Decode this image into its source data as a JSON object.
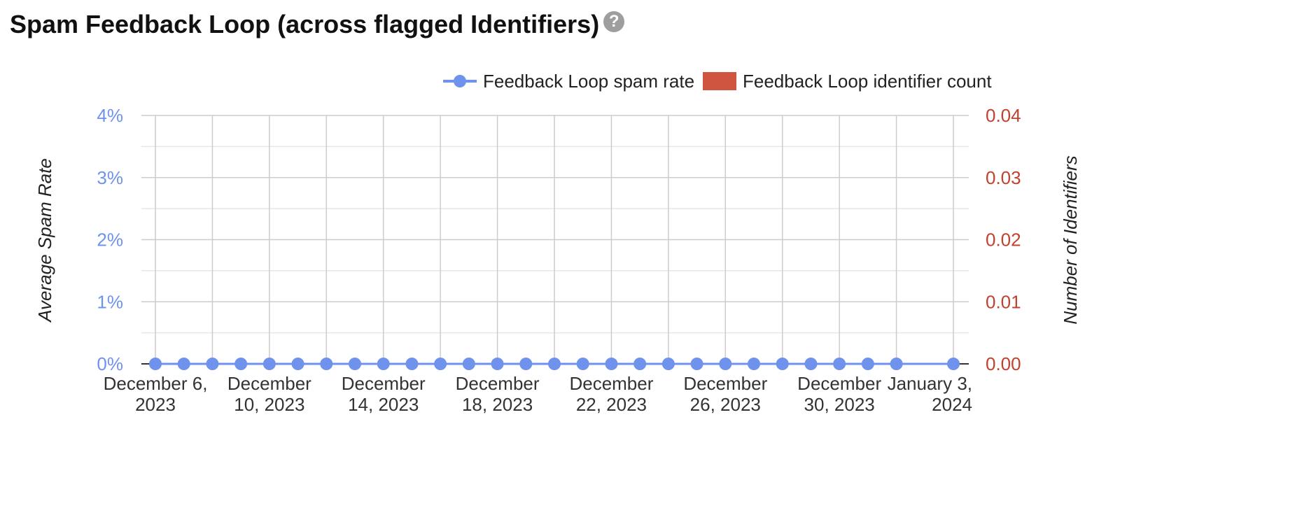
{
  "header": {
    "title": "Spam Feedback Loop (across flagged Identifiers)",
    "help_icon": "?"
  },
  "chart_data": {
    "type": "line",
    "title": "Spam Feedback Loop (across flagged Identifiers)",
    "ylabel_left": "Average Spam Rate",
    "ylabel_right": "Number of Identifiers",
    "legend_position": "top-right",
    "grid": true,
    "y_left": {
      "min": 0,
      "max": 4,
      "ticks": [
        "0%",
        "1%",
        "2%",
        "3%",
        "4%"
      ]
    },
    "y_right": {
      "min": 0,
      "max": 0.04,
      "ticks": [
        "0.00",
        "0.01",
        "0.02",
        "0.03",
        "0.04"
      ]
    },
    "x_range": [
      "2023-12-06",
      "2024-01-03"
    ],
    "x_tick_labels": [
      {
        "date": "2023-12-06",
        "lines": [
          "December 6,",
          "2023"
        ]
      },
      {
        "date": "2023-12-10",
        "lines": [
          "December",
          "10, 2023"
        ]
      },
      {
        "date": "2023-12-14",
        "lines": [
          "December",
          "14, 2023"
        ]
      },
      {
        "date": "2023-12-18",
        "lines": [
          "December",
          "18, 2023"
        ]
      },
      {
        "date": "2023-12-22",
        "lines": [
          "December",
          "22, 2023"
        ]
      },
      {
        "date": "2023-12-26",
        "lines": [
          "December",
          "26, 2023"
        ]
      },
      {
        "date": "2023-12-30",
        "lines": [
          "December",
          "30, 2023"
        ]
      },
      {
        "date": "2024-01-03",
        "lines": [
          "January 3,",
          "2024"
        ]
      }
    ],
    "series": [
      {
        "name": "Feedback Loop spam rate",
        "type": "line",
        "axis": "left",
        "color": "#6f93ec",
        "x": [
          "2023-12-06",
          "2023-12-07",
          "2023-12-08",
          "2023-12-09",
          "2023-12-10",
          "2023-12-11",
          "2023-12-12",
          "2023-12-13",
          "2023-12-14",
          "2023-12-15",
          "2023-12-16",
          "2023-12-17",
          "2023-12-18",
          "2023-12-19",
          "2023-12-20",
          "2023-12-21",
          "2023-12-22",
          "2023-12-23",
          "2023-12-24",
          "2023-12-25",
          "2023-12-26",
          "2023-12-27",
          "2023-12-28",
          "2023-12-29",
          "2023-12-30",
          "2023-12-31",
          "2024-01-01",
          "2024-01-03"
        ],
        "values": [
          0,
          0,
          0,
          0,
          0,
          0,
          0,
          0,
          0,
          0,
          0,
          0,
          0,
          0,
          0,
          0,
          0,
          0,
          0,
          0,
          0,
          0,
          0,
          0,
          0,
          0,
          0,
          0
        ]
      },
      {
        "name": "Feedback Loop identifier count",
        "type": "bar",
        "axis": "right",
        "color": "#cf5540",
        "values": []
      }
    ],
    "colors": {
      "left_axis": "#6f93ec",
      "right_axis": "#c2412f"
    }
  }
}
